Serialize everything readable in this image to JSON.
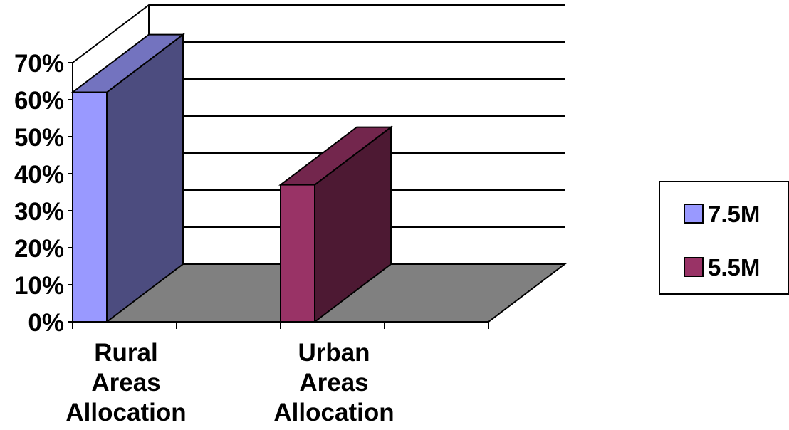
{
  "chart_data": {
    "type": "bar",
    "style": "3d-column",
    "categories": [
      [
        "Rural",
        "Areas",
        "Allocation"
      ],
      [
        "Urban",
        "Areas",
        "Allocation"
      ]
    ],
    "series": [
      {
        "name": "7.5M",
        "values": [
          62,
          null
        ],
        "color": "#9999ff",
        "side_color": "#4c4c7f",
        "top_color": "#7373bf"
      },
      {
        "name": "5.5M",
        "values": [
          null,
          37
        ],
        "color": "#993366",
        "side_color": "#4d1933",
        "top_color": "#73264d"
      }
    ],
    "y_ticks": [
      "0%",
      "10%",
      "20%",
      "30%",
      "40%",
      "50%",
      "60%",
      "70%"
    ],
    "ylim": [
      0,
      70
    ],
    "y_unit": "%",
    "grid": true,
    "floor_color": "#808080",
    "legend_position": "right"
  }
}
